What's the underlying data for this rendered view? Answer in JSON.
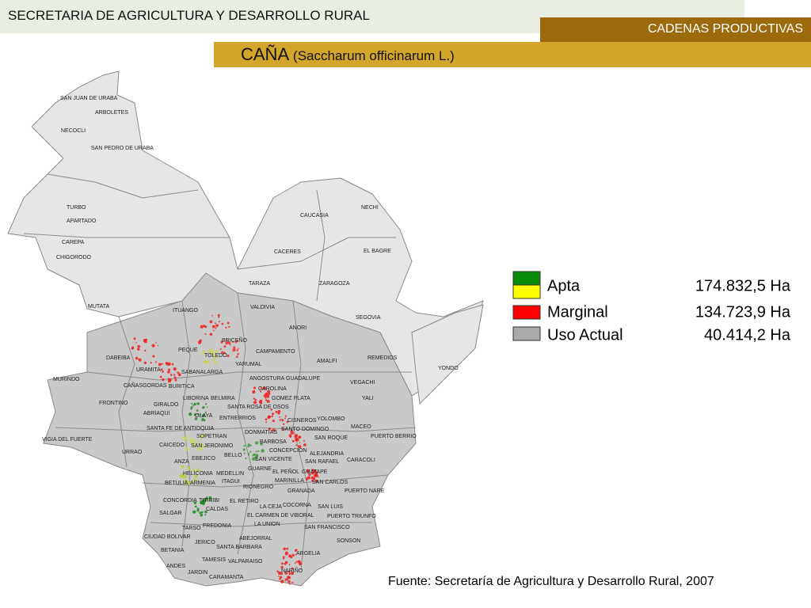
{
  "header": {
    "ministry": "SECRETARIA DE AGRICULTURA Y DESARROLLO RURAL",
    "section": "CADENAS PRODUCTIVAS",
    "crop": "CAÑA",
    "scientific_name": "(Saccharum officinarum L.)"
  },
  "legend": [
    {
      "label": "Apta",
      "value": "174.832,5 Ha"
    },
    {
      "label": "Marginal",
      "value": "134.723,9 Ha"
    },
    {
      "label": "Uso Actual",
      "value": "40.414,2 Ha"
    }
  ],
  "source": "Fuente: Secretaría de Agricultura y Desarrollo Rural, 2007",
  "municipalities": [
    "SAN JUAN DE URABA",
    "ARBOLETES",
    "NECOCLI",
    "SAN PEDRO DE URABA",
    "TURBO",
    "APARTADO",
    "CAREPA",
    "CHIGORODO",
    "NECHI",
    "CAUCASIA",
    "EL BAGRE",
    "CACERES",
    "TARAZA",
    "ZARAGOZA",
    "MUTATA",
    "ITUANGO",
    "VALDIVIA",
    "SEGOVIA",
    "ANORI",
    "BRICEÑO",
    "PEQUE",
    "CAMPAMENTO",
    "TOLEDO",
    "DABEIBA",
    "AMALFI",
    "REMEDIOS",
    "YONDO",
    "YARUMAL",
    "URAMITA",
    "SABANALARGA",
    "MURINDO",
    "ANGOSTURA",
    "GUADALUPE",
    "VEGACHI",
    "CAÑASGORDAS",
    "BURITICA",
    "CAROLINA",
    "LIBORINA",
    "BELMIRA",
    "GOMEZ PLATA",
    "YALI",
    "FRONTINO",
    "GIRALDO",
    "SANTA ROSA DE OSOS",
    "ABRIAQUI",
    "OLAYA",
    "ENTRERRIOS",
    "CISNEROS",
    "YOLOMBO",
    "SANTA FE DE ANTIOQUIA",
    "MACEO",
    "DONMATIAS",
    "SANTO DOMINGO",
    "SOPETRAN",
    "PUERTO BERRIO",
    "VIGIA DEL FUERTE",
    "SAN ROQUE",
    "BARBOSA",
    "CAICEDO",
    "SAN JERONIMO",
    "URRAO",
    "BELLO",
    "CONCEPCION",
    "ALEJANDRIA",
    "ANZA",
    "EBEJICO",
    "SAN VICENTE",
    "SAN RAFAEL",
    "CARACOLI",
    "GUARNE",
    "HELICONIA",
    "MEDELLIN",
    "EL PEÑOL",
    "GUATAPE",
    "BETULIA",
    "ARMENIA",
    "ITAGUI",
    "MARINILLA",
    "SAN CARLOS",
    "RIONEGRO",
    "GRANADA",
    "PUERTO NARE",
    "CONCORDIA",
    "TITIRIBI",
    "EL RETIRO",
    "LA CEJA",
    "COCORNA",
    "SAN LUIS",
    "CALDAS",
    "SALGAR",
    "EL CARMEN DE VIBORAL",
    "PUERTO TRIUNFO",
    "LA UNION",
    "FREDONIA",
    "TARSO",
    "SAN FRANCISCO",
    "CIUDAD BOLIVAR",
    "ABEJORRAL",
    "SONSON",
    "JERICO",
    "SANTA BARBARA",
    "BETANIA",
    "ARGELIA",
    "TAMESIS",
    "VALPARAISO",
    "ANDES",
    "NARIÑO",
    "JARDIN",
    "CARAMANTA"
  ]
}
